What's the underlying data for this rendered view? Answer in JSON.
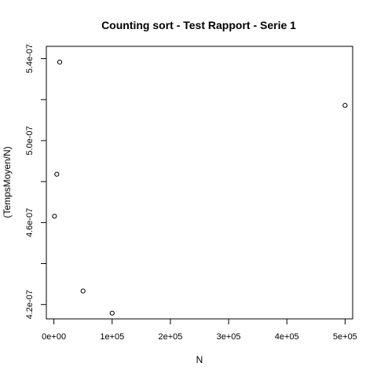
{
  "chart_data": {
    "type": "scatter",
    "title": "Counting sort - Test Rapport - Serie 1",
    "xlabel": "N",
    "ylabel": "(TempsMoyen/N)",
    "xlim": [
      -13000,
      513000
    ],
    "ylim": [
      4.13e-07,
      5.46e-07
    ],
    "x_ticks": [
      0,
      100000,
      200000,
      300000,
      400000,
      500000
    ],
    "x_tick_labels": [
      "0e+00",
      "1e+05",
      "2e+05",
      "3e+05",
      "4e+05",
      "5e+05"
    ],
    "y_ticks": [
      4.2e-07,
      4.4e-07,
      4.6e-07,
      4.8e-07,
      5e-07,
      5.2e-07,
      5.4e-07
    ],
    "y_tick_labels": [
      "4.2e-07",
      "",
      "4.6e-07",
      "",
      "5.0e-07",
      "",
      "5.4e-07"
    ],
    "grid": false,
    "x": [
      1000,
      5000,
      10000,
      50000,
      100000,
      500000
    ],
    "y": [
      4.631e-07,
      4.836e-07,
      5.383e-07,
      4.266e-07,
      4.158e-07,
      5.172e-07
    ]
  }
}
